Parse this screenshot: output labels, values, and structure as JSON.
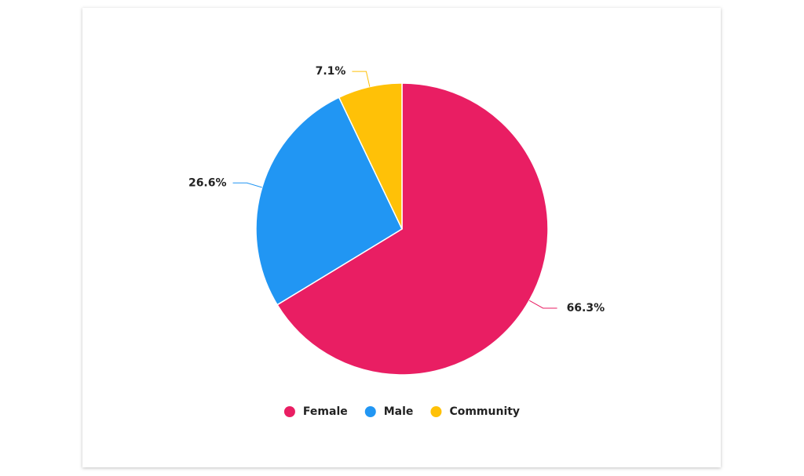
{
  "chart_data": {
    "type": "pie",
    "categories": [
      "Female",
      "Male",
      "Community"
    ],
    "values": [
      66.3,
      26.6,
      7.1
    ],
    "value_labels": [
      "66.3%",
      "26.6%",
      "7.1%"
    ],
    "colors": [
      "#e91e63",
      "#2196f3",
      "#ffc107"
    ],
    "legend": "bottom"
  }
}
